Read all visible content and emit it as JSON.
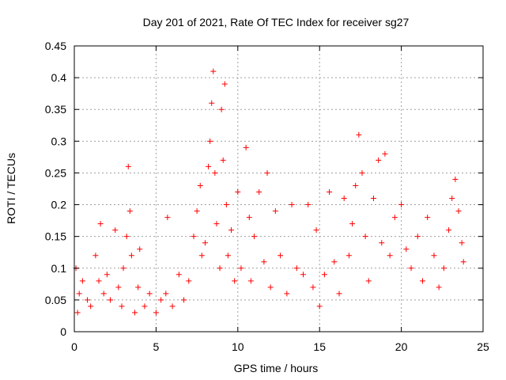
{
  "chart_data": {
    "type": "scatter",
    "title": "Day 201 of 2021, Rate Of TEC Index for receiver sg27",
    "xlabel": "GPS time / hours",
    "ylabel": "ROTI / TECUs",
    "xlim": [
      0,
      25
    ],
    "ylim": [
      0,
      0.45
    ],
    "x_ticks": [
      0,
      5,
      10,
      15,
      20,
      25
    ],
    "y_ticks": [
      0,
      0.05,
      0.1,
      0.15,
      0.2,
      0.25,
      0.3,
      0.35,
      0.4,
      0.45
    ],
    "x_tick_labels": [
      "0",
      "5",
      "10",
      "15",
      "20",
      "25"
    ],
    "y_tick_labels": [
      "0",
      "0.05",
      "0.1",
      "0.15",
      "0.2",
      "0.25",
      "0.3",
      "0.35",
      "0.4",
      "0.45"
    ],
    "grid": true,
    "marker": "+",
    "color": "#ff0000",
    "series": [
      {
        "x": [
          0.1,
          0.2,
          0.3,
          0.5,
          0.8,
          1.0,
          1.3,
          1.5,
          1.6,
          1.8,
          2.0,
          2.2,
          2.5,
          2.7,
          2.9,
          3.0,
          3.2,
          3.3,
          3.4,
          3.5,
          3.7,
          3.9,
          4.0,
          4.3,
          4.6,
          5.0,
          5.3,
          5.6,
          5.7,
          6.0,
          6.4,
          6.7,
          7.0,
          7.3,
          7.5,
          7.7,
          7.8,
          8.0,
          8.2,
          8.3,
          8.4,
          8.5,
          8.6,
          8.7,
          8.9,
          9.0,
          9.1,
          9.2,
          9.3,
          9.4,
          9.6,
          9.8,
          10.0,
          10.2,
          10.5,
          10.7,
          10.8,
          11.0,
          11.3,
          11.6,
          11.8,
          12.0,
          12.3,
          12.6,
          13.0,
          13.3,
          13.6,
          14.0,
          14.3,
          14.6,
          14.8,
          15.0,
          15.3,
          15.6,
          15.9,
          16.2,
          16.5,
          16.8,
          17.0,
          17.2,
          17.4,
          17.6,
          17.8,
          18.0,
          18.3,
          18.6,
          18.8,
          19.0,
          19.3,
          19.6,
          20.0,
          20.3,
          20.6,
          21.0,
          21.3,
          21.6,
          22.0,
          22.3,
          22.6,
          22.9,
          23.1,
          23.3,
          23.5,
          23.7,
          23.8
        ],
        "y": [
          0.1,
          0.03,
          0.06,
          0.08,
          0.05,
          0.04,
          0.12,
          0.08,
          0.17,
          0.06,
          0.09,
          0.05,
          0.16,
          0.07,
          0.04,
          0.1,
          0.15,
          0.26,
          0.19,
          0.12,
          0.03,
          0.07,
          0.13,
          0.04,
          0.06,
          0.03,
          0.05,
          0.06,
          0.18,
          0.04,
          0.09,
          0.05,
          0.08,
          0.15,
          0.19,
          0.23,
          0.12,
          0.14,
          0.26,
          0.3,
          0.36,
          0.41,
          0.25,
          0.17,
          0.1,
          0.35,
          0.27,
          0.39,
          0.2,
          0.12,
          0.16,
          0.08,
          0.22,
          0.1,
          0.29,
          0.18,
          0.08,
          0.15,
          0.22,
          0.11,
          0.25,
          0.07,
          0.19,
          0.12,
          0.06,
          0.2,
          0.1,
          0.09,
          0.2,
          0.07,
          0.16,
          0.04,
          0.09,
          0.22,
          0.11,
          0.06,
          0.21,
          0.12,
          0.17,
          0.23,
          0.31,
          0.25,
          0.15,
          0.08,
          0.21,
          0.27,
          0.14,
          0.28,
          0.12,
          0.18,
          0.2,
          0.13,
          0.1,
          0.15,
          0.08,
          0.18,
          0.12,
          0.07,
          0.1,
          0.16,
          0.21,
          0.24,
          0.19,
          0.14,
          0.11
        ]
      }
    ]
  }
}
